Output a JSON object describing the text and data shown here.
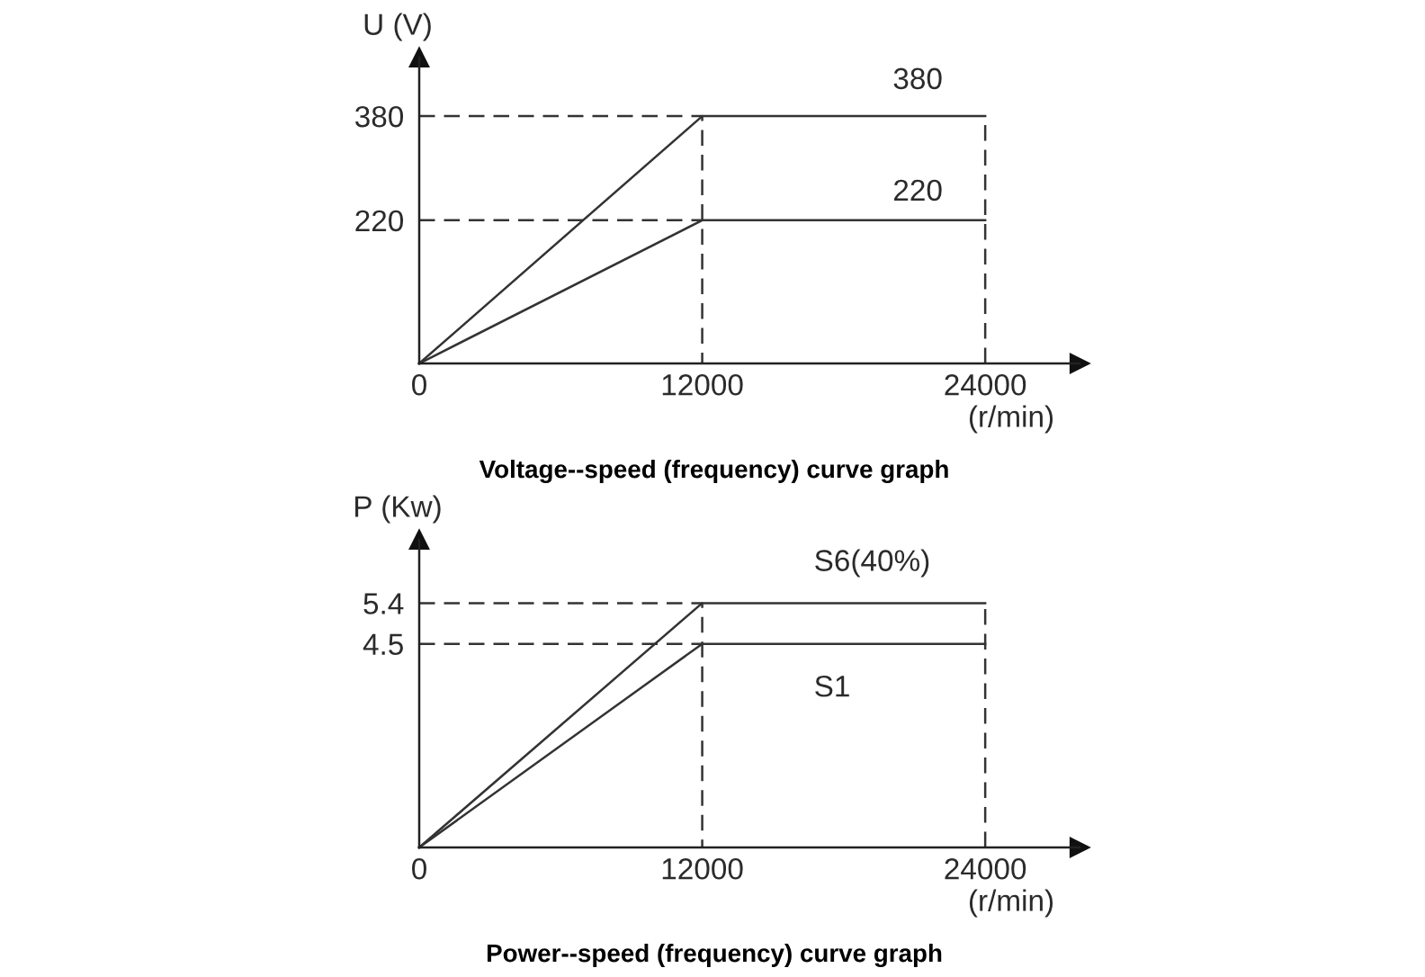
{
  "chart_data": [
    {
      "type": "line",
      "title": "Voltage--speed (frequency) curve graph",
      "xlabel": "(r/min)",
      "ylabel": "U (V)",
      "line_style": "solid",
      "series": [
        {
          "name": "380",
          "color": "#333333",
          "x": [
            0,
            12000,
            24000
          ],
          "values": [
            0,
            380,
            380
          ]
        },
        {
          "name": "220",
          "color": "#333333",
          "x": [
            0,
            12000,
            24000
          ],
          "values": [
            0,
            220,
            220
          ]
        },
        {
          "color": "#333333",
          "line_style": "dashed",
          "x": [
            0,
            12000,
            12000
          ],
          "values": [
            380,
            380,
            0
          ]
        },
        {
          "color": "#333333",
          "line_style": "dashed",
          "x": [
            0,
            12000
          ],
          "values": [
            220,
            220
          ]
        },
        {
          "color": "#333333",
          "line_style": "dashed",
          "x": [
            24000,
            24000
          ],
          "values": [
            0,
            380
          ]
        }
      ],
      "xlim": [
        0,
        28000
      ],
      "ylim": [
        0,
        470
      ],
      "xticks": [
        0,
        12000,
        24000
      ],
      "yticks": [
        220,
        380
      ]
    },
    {
      "type": "line",
      "title": "Power--speed (frequency) curve graph",
      "xlabel": "(r/min)",
      "ylabel": "P (Kw)",
      "line_style": "solid",
      "series": [
        {
          "name": "S6(40%)",
          "color": "#333333",
          "x": [
            0,
            12000,
            24000
          ],
          "values": [
            0,
            5.4,
            5.4
          ]
        },
        {
          "name": "S1",
          "color": "#333333",
          "x": [
            0,
            12000,
            24000
          ],
          "values": [
            0,
            4.5,
            4.5
          ]
        },
        {
          "color": "#333333",
          "line_style": "dashed",
          "x": [
            0,
            12000,
            12000
          ],
          "values": [
            5.4,
            5.4,
            0
          ]
        },
        {
          "color": "#333333",
          "line_style": "dashed",
          "x": [
            0,
            12000
          ],
          "values": [
            4.5,
            4.5
          ]
        },
        {
          "color": "#333333",
          "line_style": "dashed",
          "x": [
            24000,
            24000
          ],
          "values": [
            0,
            5.4
          ]
        }
      ],
      "xlim": [
        0,
        28000
      ],
      "ylim": [
        0,
        6.8
      ],
      "xticks": [
        0,
        12000,
        24000
      ],
      "yticks": [
        4.5,
        5.4
      ]
    }
  ]
}
